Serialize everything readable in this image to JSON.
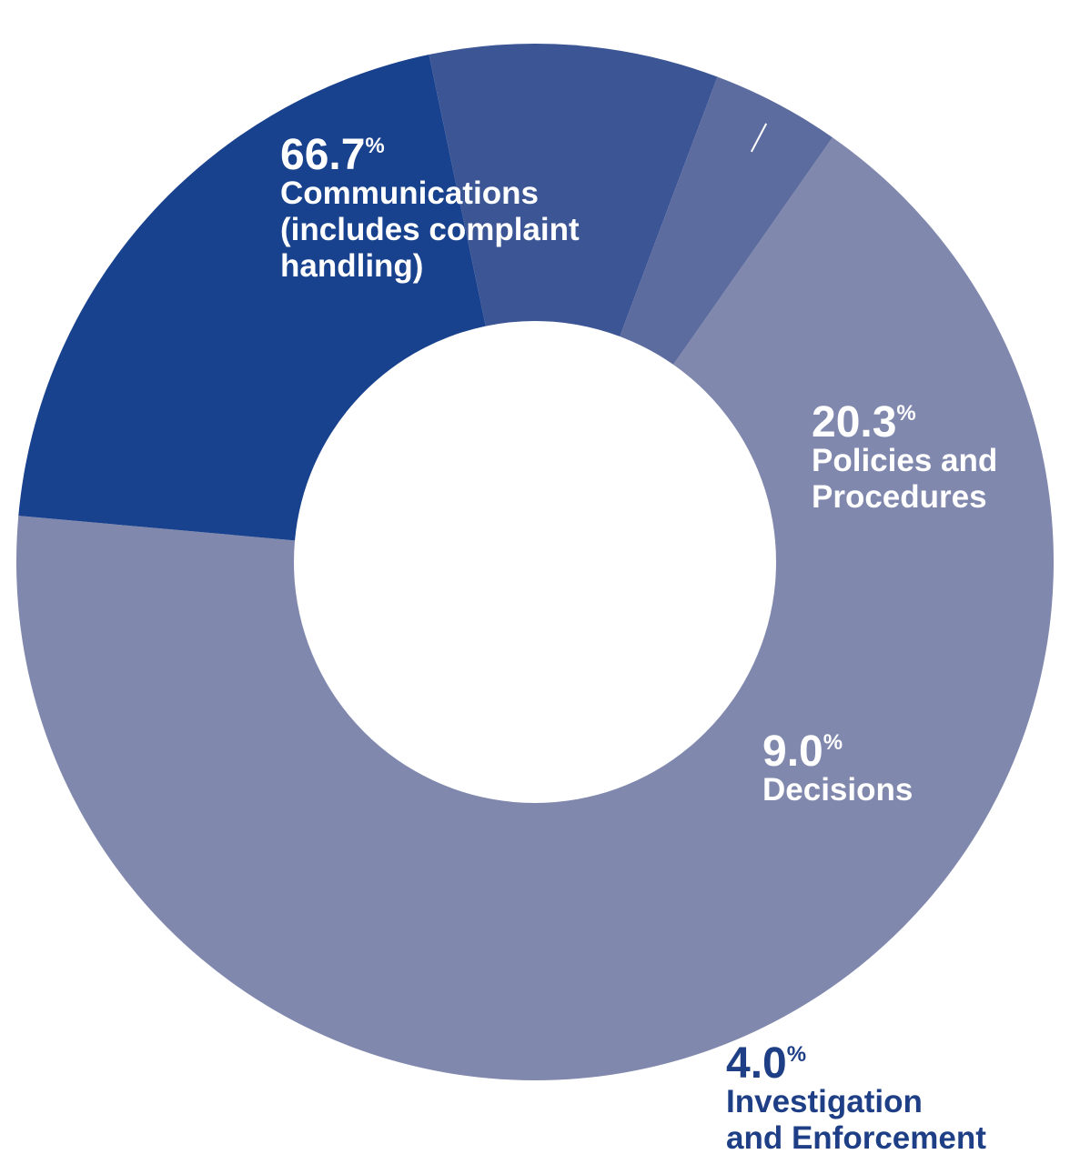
{
  "chart_data": {
    "type": "pie",
    "style": "donut",
    "slices": [
      {
        "value": 66.7,
        "pct_text": "66.7",
        "pct_symbol": "%",
        "label_lines": [
          "Communications",
          "(includes complaint",
          "handling)"
        ],
        "color": "#8088ad",
        "label_color": "#ffffff"
      },
      {
        "value": 20.3,
        "pct_text": "20.3",
        "pct_symbol": "%",
        "label_lines": [
          "Policies and",
          "Procedures"
        ],
        "color": "#18418e",
        "label_color": "#ffffff"
      },
      {
        "value": 9.0,
        "pct_text": "9.0",
        "pct_symbol": "%",
        "label_lines": [
          "Decisions"
        ],
        "color": "#3b5595",
        "label_color": "#ffffff"
      },
      {
        "value": 4.0,
        "pct_text": "4.0",
        "pct_symbol": "%",
        "label_lines": [
          "Investigation",
          "and Enforcement"
        ],
        "color": "#5d6c9e",
        "label_color": "#1e3f86"
      }
    ]
  }
}
